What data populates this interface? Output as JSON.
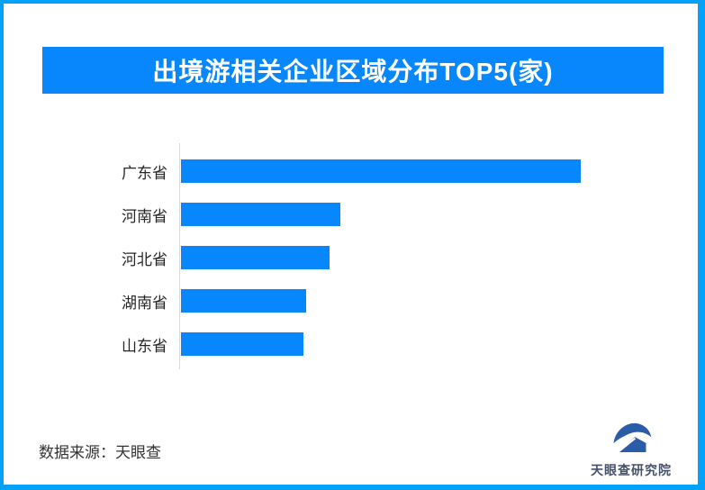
{
  "page": {
    "background_color": "#FFFFFF",
    "border_color": "#03A1FA"
  },
  "header": {
    "title": "出境游相关企业区域分布TOP5(家)",
    "banner_color": "#0886FB",
    "title_text_color": "#FFFFFF"
  },
  "chart_data": {
    "type": "bar",
    "orientation": "horizontal",
    "title": "出境游相关企业区域分布TOP5(家)",
    "categories": [
      "广东省",
      "河南省",
      "河北省",
      "湖南省",
      "山东省"
    ],
    "values": [
      100,
      39.9,
      37.2,
      31.3,
      30.6
    ],
    "values_are_relative": true,
    "value_labels_shown": false,
    "xlabel": "",
    "ylabel": "",
    "unit": "家",
    "bar_color": "#0886FB",
    "axis_line_color": "#D9D9D9",
    "grid": false,
    "legend": "none"
  },
  "footer": {
    "source_label": "数据来源：天眼查"
  },
  "logo": {
    "name": "天眼查研究院",
    "icon": "tianyancha-eye-logo-icon",
    "icon_color": "#2B5CA8",
    "text_color": "#45506B"
  }
}
